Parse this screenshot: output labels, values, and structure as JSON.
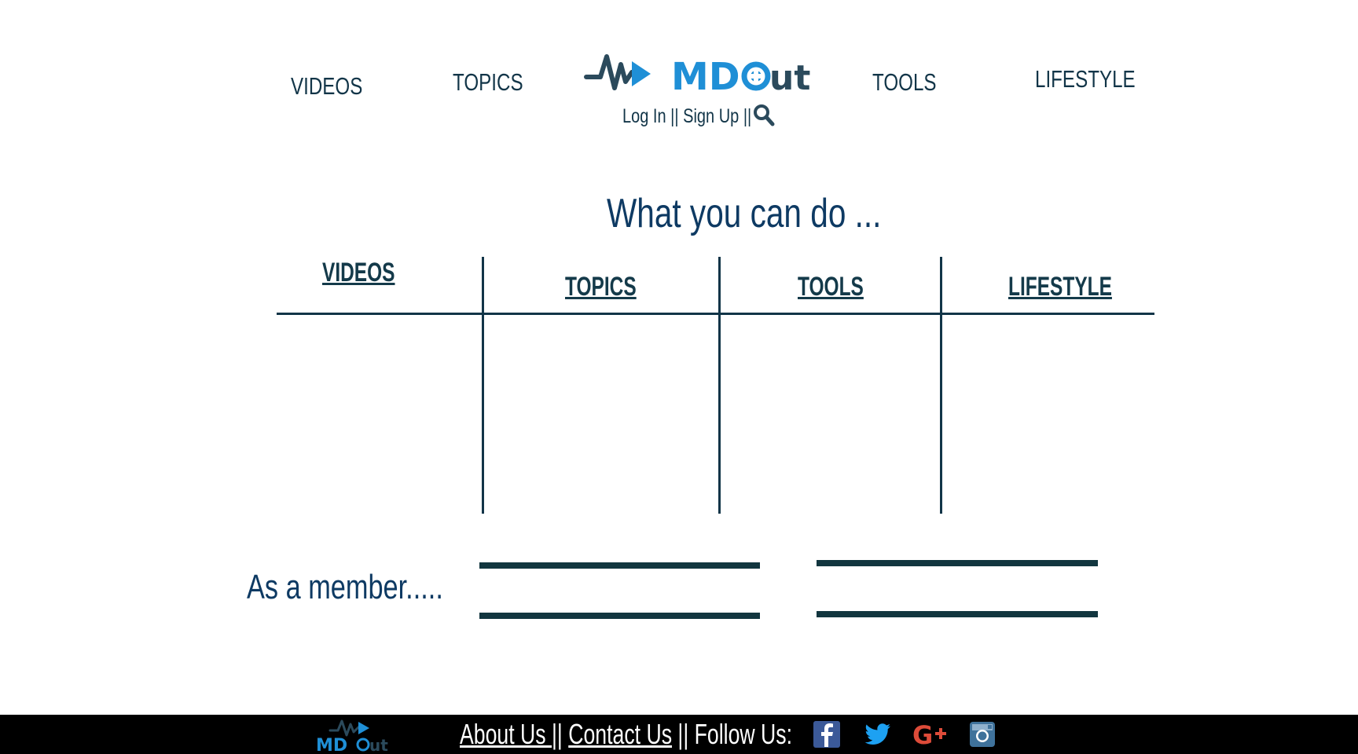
{
  "nav": {
    "videos": "VIDEOS",
    "topics": "TOPICS",
    "tools": "TOOLS",
    "lifestyle": "LIFESTYLE"
  },
  "logo": {
    "text": "MDout"
  },
  "auth": {
    "login": "Log In",
    "sep1": " || ",
    "signup": "Sign Up",
    "sep2": " ||"
  },
  "main": {
    "headline": "What you can do ...",
    "columns": [
      "VIDEOS",
      "TOPICS",
      "TOOLS",
      "LIFESTYLE"
    ],
    "member_label": "As a member....."
  },
  "footer": {
    "about": "About Us ",
    "sep1": "||",
    "contact": "Contact Us",
    "follow": " || Follow Us:",
    "social_icons": [
      "facebook-icon",
      "twitter-icon",
      "google-plus-icon",
      "instagram-icon"
    ]
  },
  "colors": {
    "navy": "#123548",
    "headline": "#0e3a63",
    "logo_blue": "#1f8fd6",
    "logo_dark": "#2b4a5c",
    "footer_bg": "#000000",
    "facebook": "#3b5998",
    "twitter": "#1da1f2",
    "google_plus": "#dd4b39",
    "instagram": "#3f729b"
  }
}
